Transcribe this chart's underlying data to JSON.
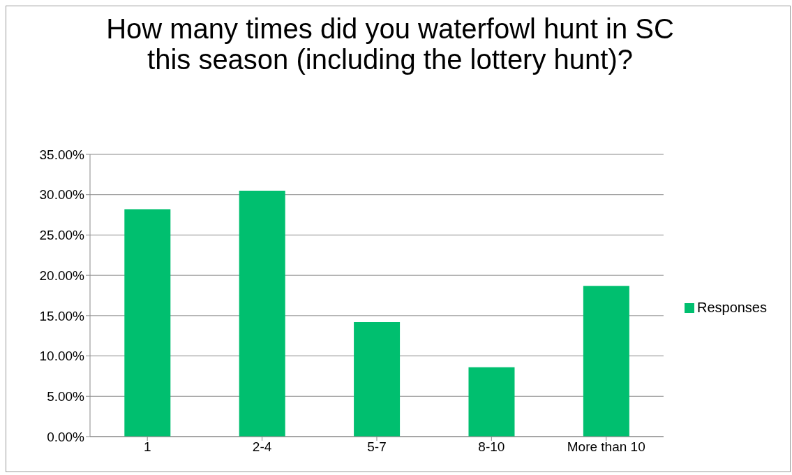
{
  "chart_data": {
    "type": "bar",
    "title": "How many times did you waterfowl hunt in SC this season (including the lottery hunt)?",
    "categories": [
      "1",
      "2-4",
      "5-7",
      "8-10",
      "More than 10"
    ],
    "series": [
      {
        "name": "Responses",
        "color": "#00bf6f",
        "values": [
          28.2,
          30.5,
          14.2,
          8.6,
          18.7
        ]
      }
    ],
    "ylim": [
      0,
      35
    ],
    "yticks": [
      {
        "value": 0,
        "label": "0.00%"
      },
      {
        "value": 5,
        "label": "5.00%"
      },
      {
        "value": 10,
        "label": "10.00%"
      },
      {
        "value": 15,
        "label": "15.00%"
      },
      {
        "value": 20,
        "label": "20.00%"
      },
      {
        "value": 25,
        "label": "25.00%"
      },
      {
        "value": 30,
        "label": "30.00%"
      },
      {
        "value": 35,
        "label": "35.00%"
      }
    ],
    "grid": "y",
    "legend": "right"
  }
}
